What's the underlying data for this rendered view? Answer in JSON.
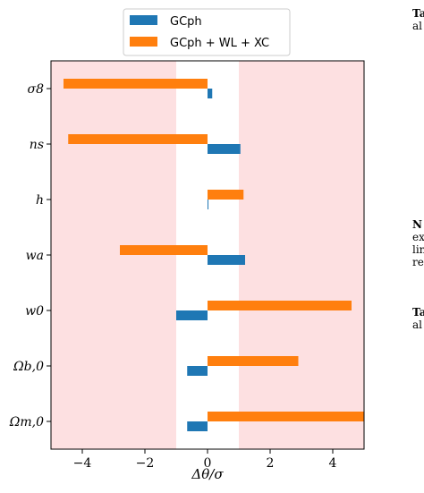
{
  "chart_data": {
    "type": "bar",
    "orientation": "horizontal",
    "xlabel": "Δθ/σ",
    "xlim": [
      -5.0,
      5.0
    ],
    "xticks": [
      -4,
      -2,
      0,
      2,
      4
    ],
    "xtick_labels": [
      "−4",
      "−2",
      "0",
      "2",
      "4"
    ],
    "categories": [
      "σ8",
      "ns",
      "h",
      "wa",
      "w0",
      "Ωb,0",
      "Ωm,0"
    ],
    "series": [
      {
        "name": "GCph",
        "color": "#1f77b4",
        "values": [
          0.15,
          1.05,
          0.02,
          1.2,
          -1.0,
          -0.65,
          -0.65
        ]
      },
      {
        "name": "GCph + WL + XC",
        "color": "#ff7f0e",
        "values": [
          -4.6,
          -4.45,
          1.15,
          -2.8,
          4.6,
          2.9,
          5.0
        ]
      }
    ],
    "shaded_regions": [
      {
        "from": -5.0,
        "to": -1.0,
        "color": "#fde0e1"
      },
      {
        "from": 1.0,
        "to": 5.0,
        "color": "#fde0e1"
      }
    ],
    "legend_position": "top-center",
    "grid": false
  },
  "side_text": {
    "line1": "Ta",
    "line2": "al",
    "line3": "N",
    "line4": "ex",
    "line5": "lin",
    "line6": "re",
    "line7": "Ta",
    "line8": "al"
  }
}
